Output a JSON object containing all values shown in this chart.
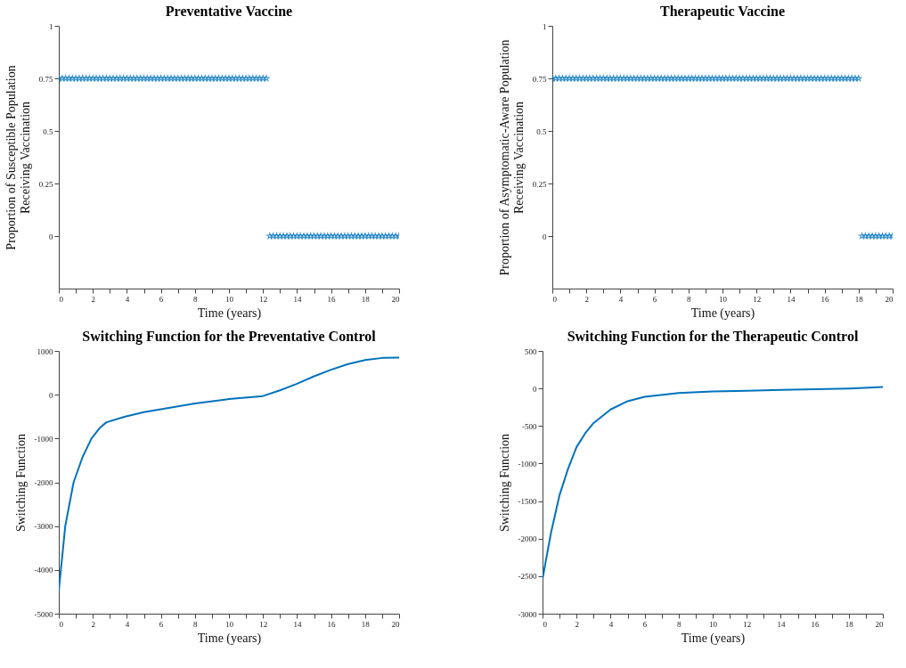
{
  "chart_data": [
    {
      "type": "scatter",
      "title": "Preventative Vaccine",
      "xlabel": "Time (years)",
      "ylabel": "Proportion of Susceptible Population\nReceiving Vaccination",
      "marker": "star",
      "grid": false,
      "legend": false,
      "xlim": [
        0,
        20
      ],
      "xticks": [
        0,
        {
          "value": 1,
          "label": null
        },
        2,
        {
          "value": 3,
          "label": null
        },
        4,
        {
          "value": 5,
          "label": null
        },
        6,
        {
          "value": 7,
          "label": null
        },
        8,
        {
          "value": 9,
          "label": null
        },
        10,
        {
          "value": 11,
          "label": null
        },
        12,
        {
          "value": 13,
          "label": null
        },
        14,
        {
          "value": 15,
          "label": null
        },
        16,
        {
          "value": 17,
          "label": null
        },
        18,
        {
          "value": 19,
          "label": null
        },
        20
      ],
      "ylim": [
        -0.25,
        1
      ],
      "yticks": [
        0,
        0.25,
        0.5,
        0.75,
        1
      ],
      "series": [
        {
          "color": "#0072bd",
          "x": [
            0,
            0.2,
            0.4,
            0.6,
            0.8,
            1,
            1.2,
            1.4,
            1.6,
            1.8,
            2,
            2.2,
            2.4,
            2.6,
            2.8,
            3,
            3.2,
            3.4,
            3.6,
            3.8,
            4,
            4.2,
            4.4,
            4.6,
            4.8,
            5,
            5.2,
            5.4,
            5.6,
            5.8,
            6,
            6.2,
            6.4,
            6.6,
            6.8,
            7,
            7.2,
            7.4,
            7.6,
            7.8,
            8,
            8.2,
            8.4,
            8.6,
            8.8,
            9,
            9.2,
            9.4,
            9.6,
            9.8,
            10,
            10.2,
            10.4,
            10.6,
            10.8,
            11,
            11.2,
            11.4,
            11.6,
            11.8,
            12,
            12.2,
            12.4,
            12.6,
            12.8,
            13,
            13.2,
            13.4,
            13.6,
            13.8,
            14,
            14.2,
            14.4,
            14.6,
            14.8,
            15,
            15.2,
            15.4,
            15.6,
            15.8,
            16,
            16.2,
            16.4,
            16.6,
            16.8,
            17,
            17.2,
            17.4,
            17.6,
            17.8,
            18,
            18.2,
            18.4,
            18.6,
            18.8,
            19,
            19.2,
            19.4,
            19.6,
            19.8,
            20
          ],
          "values": [
            0.75,
            0.75,
            0.75,
            0.75,
            0.75,
            0.75,
            0.75,
            0.75,
            0.75,
            0.75,
            0.75,
            0.75,
            0.75,
            0.75,
            0.75,
            0.75,
            0.75,
            0.75,
            0.75,
            0.75,
            0.75,
            0.75,
            0.75,
            0.75,
            0.75,
            0.75,
            0.75,
            0.75,
            0.75,
            0.75,
            0.75,
            0.75,
            0.75,
            0.75,
            0.75,
            0.75,
            0.75,
            0.75,
            0.75,
            0.75,
            0.75,
            0.75,
            0.75,
            0.75,
            0.75,
            0.75,
            0.75,
            0.75,
            0.75,
            0.75,
            0.75,
            0.75,
            0.75,
            0.75,
            0.75,
            0.75,
            0.75,
            0.75,
            0.75,
            0.75,
            0.75,
            0.75,
            0,
            0,
            0,
            0,
            0,
            0,
            0,
            0,
            0,
            0,
            0,
            0,
            0,
            0,
            0,
            0,
            0,
            0,
            0,
            0,
            0,
            0,
            0,
            0,
            0,
            0,
            0,
            0,
            0,
            0,
            0,
            0,
            0,
            0,
            0,
            0,
            0,
            0,
            0
          ]
        }
      ]
    },
    {
      "type": "scatter",
      "title": "Therapeutic Vaccine",
      "xlabel": "Time (years)",
      "ylabel": "Proportion of Asymptomatic-Aware Population\nReceiving Vaccination",
      "marker": "star",
      "grid": false,
      "legend": false,
      "xlim": [
        0,
        20
      ],
      "xticks": [
        0,
        {
          "value": 1,
          "label": null
        },
        2,
        {
          "value": 3,
          "label": null
        },
        4,
        {
          "value": 5,
          "label": null
        },
        6,
        {
          "value": 7,
          "label": null
        },
        8,
        {
          "value": 9,
          "label": null
        },
        10,
        {
          "value": 11,
          "label": null
        },
        12,
        {
          "value": 13,
          "label": null
        },
        14,
        {
          "value": 15,
          "label": null
        },
        16,
        {
          "value": 17,
          "label": null
        },
        18,
        {
          "value": 19,
          "label": null
        },
        20
      ],
      "ylim": [
        -0.25,
        1
      ],
      "yticks": [
        0,
        0.25,
        0.5,
        0.75,
        1
      ],
      "series": [
        {
          "color": "#0072bd",
          "x": [
            0,
            0.2,
            0.4,
            0.6,
            0.8,
            1,
            1.2,
            1.4,
            1.6,
            1.8,
            2,
            2.2,
            2.4,
            2.6,
            2.8,
            3,
            3.2,
            3.4,
            3.6,
            3.8,
            4,
            4.2,
            4.4,
            4.6,
            4.8,
            5,
            5.2,
            5.4,
            5.6,
            5.8,
            6,
            6.2,
            6.4,
            6.6,
            6.8,
            7,
            7.2,
            7.4,
            7.6,
            7.8,
            8,
            8.2,
            8.4,
            8.6,
            8.8,
            9,
            9.2,
            9.4,
            9.6,
            9.8,
            10,
            10.2,
            10.4,
            10.6,
            10.8,
            11,
            11.2,
            11.4,
            11.6,
            11.8,
            12,
            12.2,
            12.4,
            12.6,
            12.8,
            13,
            13.2,
            13.4,
            13.6,
            13.8,
            14,
            14.2,
            14.4,
            14.6,
            14.8,
            15,
            15.2,
            15.4,
            15.6,
            15.8,
            16,
            16.2,
            16.4,
            16.6,
            16.8,
            17,
            17.2,
            17.4,
            17.6,
            17.8,
            18,
            18.2,
            18.4,
            18.6,
            18.8,
            19,
            19.2,
            19.4,
            19.6,
            19.8,
            20
          ],
          "values": [
            0.75,
            0.75,
            0.75,
            0.75,
            0.75,
            0.75,
            0.75,
            0.75,
            0.75,
            0.75,
            0.75,
            0.75,
            0.75,
            0.75,
            0.75,
            0.75,
            0.75,
            0.75,
            0.75,
            0.75,
            0.75,
            0.75,
            0.75,
            0.75,
            0.75,
            0.75,
            0.75,
            0.75,
            0.75,
            0.75,
            0.75,
            0.75,
            0.75,
            0.75,
            0.75,
            0.75,
            0.75,
            0.75,
            0.75,
            0.75,
            0.75,
            0.75,
            0.75,
            0.75,
            0.75,
            0.75,
            0.75,
            0.75,
            0.75,
            0.75,
            0.75,
            0.75,
            0.75,
            0.75,
            0.75,
            0.75,
            0.75,
            0.75,
            0.75,
            0.75,
            0.75,
            0.75,
            0.75,
            0.75,
            0.75,
            0.75,
            0.75,
            0.75,
            0.75,
            0.75,
            0.75,
            0.75,
            0.75,
            0.75,
            0.75,
            0.75,
            0.75,
            0.75,
            0.75,
            0.75,
            0.75,
            0.75,
            0.75,
            0.75,
            0.75,
            0.75,
            0.75,
            0.75,
            0.75,
            0.75,
            0.75,
            0,
            0,
            0,
            0,
            0,
            0,
            0,
            0,
            0,
            0
          ]
        }
      ]
    },
    {
      "type": "line",
      "title": "Switching Function for the Preventative Control",
      "xlabel": "Time (years)",
      "ylabel": "Switching Function",
      "grid": false,
      "legend": false,
      "line_style": "solid",
      "xlim": [
        0,
        20
      ],
      "xticks": [
        0,
        {
          "value": 1,
          "label": null
        },
        2,
        {
          "value": 3,
          "label": null
        },
        4,
        {
          "value": 5,
          "label": null
        },
        6,
        {
          "value": 7,
          "label": null
        },
        8,
        {
          "value": 9,
          "label": null
        },
        10,
        {
          "value": 11,
          "label": null
        },
        12,
        {
          "value": 13,
          "label": null
        },
        14,
        {
          "value": 15,
          "label": null
        },
        16,
        {
          "value": 17,
          "label": null
        },
        18,
        {
          "value": 19,
          "label": null
        },
        20
      ],
      "ylim": [
        -5000,
        1000
      ],
      "yticks": [
        -5000,
        -4000,
        -3000,
        -2000,
        -1000,
        0,
        1000
      ],
      "series": [
        {
          "color": "#0072bd",
          "x": [
            0,
            0.12,
            0.2,
            0.38,
            0.87,
            1.4,
            1.92,
            2.4,
            2.8,
            3.9,
            5,
            6,
            8,
            10,
            12,
            13,
            14,
            15,
            16,
            17,
            18,
            19,
            20
          ],
          "values": [
            -4480,
            -4000,
            -3700,
            -3000,
            -2000,
            -1420,
            -1000,
            -760,
            -630,
            -500,
            -400,
            -330,
            -200,
            -100,
            -30,
            100,
            250,
            420,
            570,
            700,
            790,
            840,
            850
          ]
        }
      ]
    },
    {
      "type": "line",
      "title": "Switching Function for the Therapeutic Control",
      "xlabel": "Time (years)",
      "ylabel": "Switching Function",
      "grid": false,
      "legend": false,
      "line_style": "solid",
      "xlim": [
        0,
        20
      ],
      "xticks": [
        0,
        {
          "value": 1,
          "label": null
        },
        2,
        {
          "value": 3,
          "label": null
        },
        4,
        {
          "value": 5,
          "label": null
        },
        6,
        {
          "value": 7,
          "label": null
        },
        8,
        {
          "value": 9,
          "label": null
        },
        10,
        {
          "value": 11,
          "label": null
        },
        12,
        {
          "value": 13,
          "label": null
        },
        14,
        {
          "value": 15,
          "label": null
        },
        16,
        {
          "value": 17,
          "label": null
        },
        18,
        {
          "value": 19,
          "label": null
        },
        20
      ],
      "ylim": [
        -3000,
        500
      ],
      "yticks": [
        -3000,
        -2500,
        -2000,
        -1500,
        -1000,
        -500,
        0,
        500
      ],
      "series": [
        {
          "color": "#0072bd",
          "x": [
            0,
            0.2,
            0.5,
            1,
            1.5,
            2,
            2.5,
            3,
            4,
            5,
            6,
            8,
            10,
            12,
            14,
            16,
            18,
            20
          ],
          "values": [
            -2540,
            -2290,
            -1920,
            -1420,
            -1070,
            -780,
            -600,
            -460,
            -280,
            -170,
            -110,
            -60,
            -40,
            -30,
            -20,
            -10,
            0,
            20
          ]
        }
      ]
    }
  ]
}
